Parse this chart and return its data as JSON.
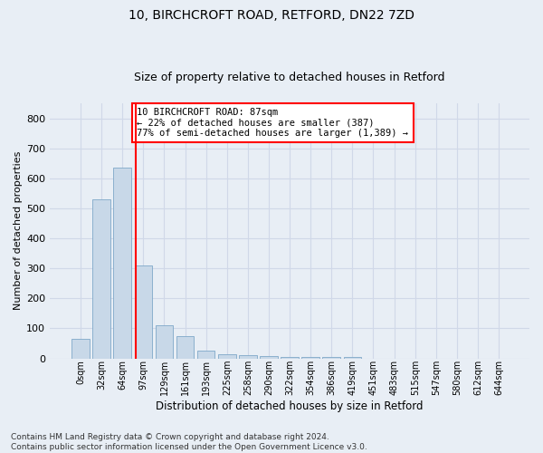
{
  "title1": "10, BIRCHCROFT ROAD, RETFORD, DN22 7ZD",
  "title2": "Size of property relative to detached houses in Retford",
  "xlabel": "Distribution of detached houses by size in Retford",
  "ylabel": "Number of detached properties",
  "footnote": "Contains HM Land Registry data © Crown copyright and database right 2024.\nContains public sector information licensed under the Open Government Licence v3.0.",
  "bar_labels": [
    "0sqm",
    "32sqm",
    "64sqm",
    "97sqm",
    "129sqm",
    "161sqm",
    "193sqm",
    "225sqm",
    "258sqm",
    "290sqm",
    "322sqm",
    "354sqm",
    "386sqm",
    "419sqm",
    "451sqm",
    "483sqm",
    "515sqm",
    "547sqm",
    "580sqm",
    "612sqm",
    "644sqm"
  ],
  "bar_values": [
    65,
    530,
    635,
    310,
    110,
    75,
    27,
    13,
    10,
    7,
    4,
    4,
    4,
    4,
    0,
    0,
    0,
    0,
    0,
    0,
    0
  ],
  "bar_color": "#c8d8e8",
  "bar_edge_color": "#7fa8c8",
  "grid_color": "#d0d8e8",
  "vline_x": 2.65,
  "vline_color": "red",
  "annotation_text": "10 BIRCHCROFT ROAD: 87sqm\n← 22% of detached houses are smaller (387)\n77% of semi-detached houses are larger (1,389) →",
  "annotation_box_color": "white",
  "annotation_box_edge_color": "red",
  "ylim": [
    0,
    850
  ],
  "yticks": [
    0,
    100,
    200,
    300,
    400,
    500,
    600,
    700,
    800
  ],
  "background_color": "#e8eef5",
  "plot_bg_color": "#e8eef5",
  "title1_fontsize": 10,
  "title2_fontsize": 9,
  "xlabel_fontsize": 8.5,
  "ylabel_fontsize": 8,
  "footnote_fontsize": 6.5,
  "annotation_fontsize": 7.5
}
